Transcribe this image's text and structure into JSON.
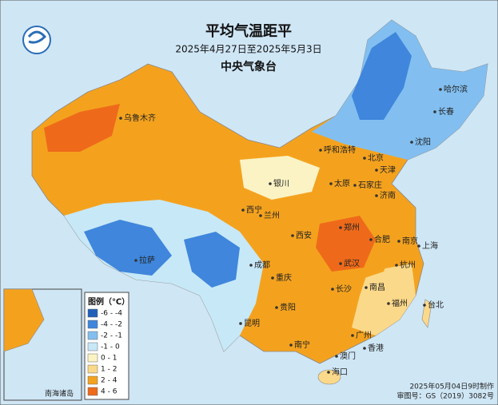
{
  "header": {
    "title": "平均气温距平",
    "subtitle": "2025年4月27日至2025年5月3日",
    "agency": "中央气象台"
  },
  "legend": {
    "title": "图例（℃）",
    "items": [
      {
        "label": "-6 - -4",
        "color": "#1f5fb8"
      },
      {
        "label": "-4 - -2",
        "color": "#3f86dc"
      },
      {
        "label": "-2 - -1",
        "color": "#82bff0"
      },
      {
        "label": "-1 - 0",
        "color": "#c7e8f7"
      },
      {
        "label": "0 - 1",
        "color": "#fbf3c4"
      },
      {
        "label": "1 - 2",
        "color": "#fbd98a"
      },
      {
        "label": "2 - 4",
        "color": "#f4a21e"
      },
      {
        "label": "4 - 6",
        "color": "#ee6a1a"
      }
    ]
  },
  "cities": [
    "乌鲁木齐",
    "呼和浩特",
    "哈尔滨",
    "长春",
    "沈阳",
    "北京",
    "天津",
    "银川",
    "太原",
    "石家庄",
    "济南",
    "西宁",
    "兰州",
    "西安",
    "郑州",
    "合肥",
    "南京",
    "上海",
    "拉萨",
    "成都",
    "重庆",
    "武汉",
    "杭州",
    "长沙",
    "南昌",
    "福州",
    "贵阳",
    "昆明",
    "台北",
    "南宁",
    "广州",
    "香港",
    "澳门",
    "海口"
  ],
  "inset": {
    "label": "南海诸岛"
  },
  "footer": {
    "made": "2025年05月04日9时制作",
    "review": "审图号：GS（2019）3082号"
  }
}
